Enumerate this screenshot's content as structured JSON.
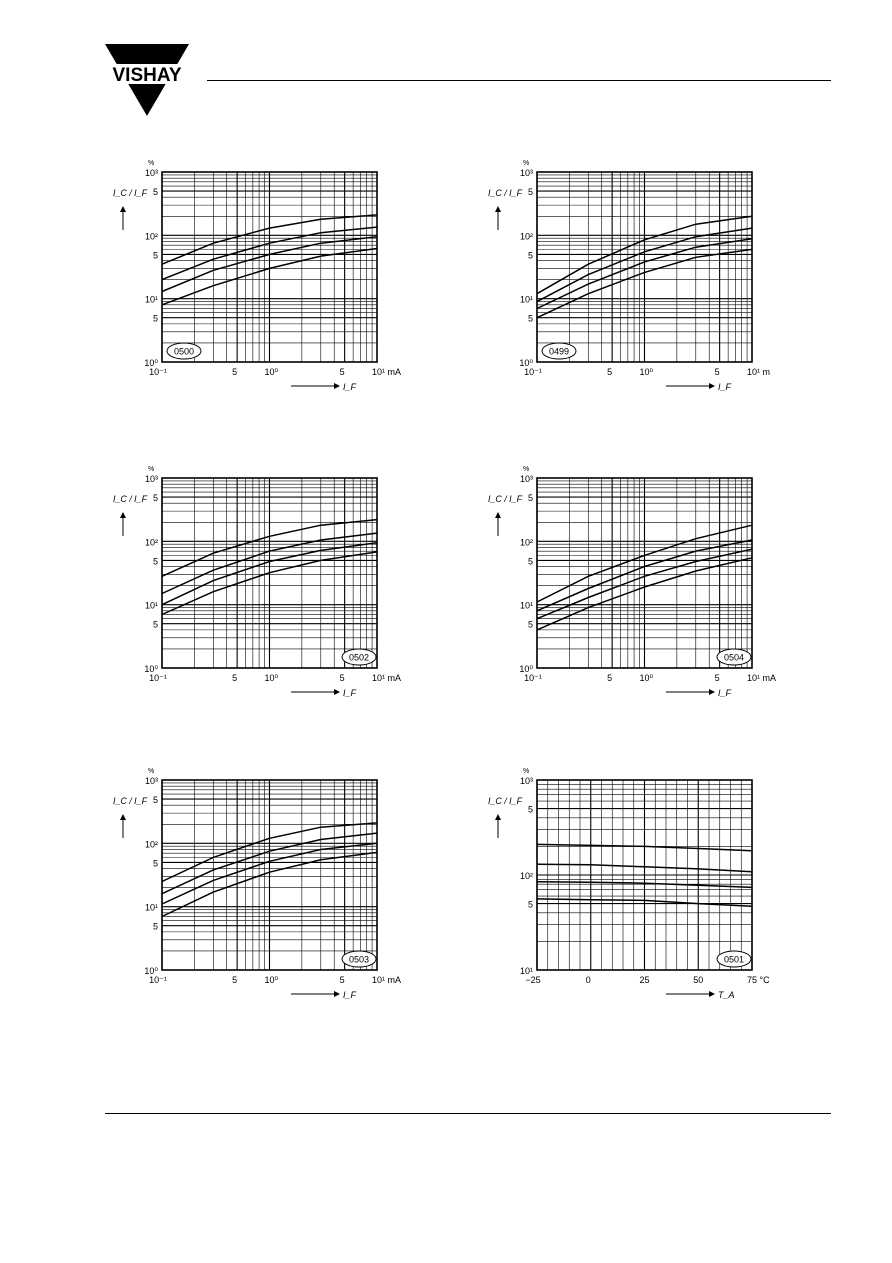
{
  "header": {
    "brand": "VISHAY"
  },
  "chart_data": [
    {
      "type": "line",
      "x_scale": "log",
      "y_scale": "log",
      "xlim": [
        0.1,
        10
      ],
      "ylim": [
        1,
        1000
      ],
      "x_ticks": [
        "10⁻¹",
        "5",
        "10⁰",
        "5",
        "10¹ mA"
      ],
      "y_ticks": [
        "10⁰",
        "5",
        "10¹",
        "5",
        "10²",
        "5",
        "10³"
      ],
      "y_unit": "%",
      "ylabel": "I_C / I_F",
      "xlabel": "I_F",
      "figure_id": "0500",
      "id_position": "bottom-left",
      "series": [
        {
          "x": [
            0.1,
            0.3,
            1,
            3,
            10
          ],
          "y": [
            35,
            75,
            130,
            180,
            210
          ]
        },
        {
          "x": [
            0.1,
            0.3,
            1,
            3,
            10
          ],
          "y": [
            20,
            42,
            75,
            110,
            135
          ]
        },
        {
          "x": [
            0.1,
            0.3,
            1,
            3,
            10
          ],
          "y": [
            13,
            28,
            50,
            75,
            95
          ]
        },
        {
          "x": [
            0.1,
            0.3,
            1,
            3,
            10
          ],
          "y": [
            8,
            16,
            30,
            47,
            62
          ]
        }
      ]
    },
    {
      "type": "line",
      "x_scale": "log",
      "y_scale": "log",
      "xlim": [
        0.1,
        10
      ],
      "ylim": [
        1,
        1000
      ],
      "x_ticks": [
        "10⁻¹",
        "5",
        "10⁰",
        "5",
        "10¹ m"
      ],
      "y_ticks": [
        "10⁰",
        "5",
        "10¹",
        "5",
        "10²",
        "5",
        "10³"
      ],
      "y_unit": "%",
      "ylabel": "I_C / I_F",
      "xlabel": "I_F",
      "figure_id": "0499",
      "id_position": "bottom-left",
      "series": [
        {
          "x": [
            0.1,
            0.3,
            1,
            3,
            10
          ],
          "y": [
            12,
            35,
            85,
            150,
            200
          ]
        },
        {
          "x": [
            0.1,
            0.3,
            1,
            3,
            10
          ],
          "y": [
            9,
            24,
            55,
            95,
            130
          ]
        },
        {
          "x": [
            0.1,
            0.3,
            1,
            3,
            10
          ],
          "y": [
            7,
            17,
            38,
            65,
            88
          ]
        },
        {
          "x": [
            0.1,
            0.3,
            1,
            3,
            10
          ],
          "y": [
            5,
            12,
            26,
            45,
            60
          ]
        }
      ]
    },
    {
      "type": "line",
      "x_scale": "log",
      "y_scale": "log",
      "xlim": [
        0.1,
        10
      ],
      "ylim": [
        1,
        1000
      ],
      "x_ticks": [
        "10⁻¹",
        "5",
        "10⁰",
        "5",
        "10¹ mA"
      ],
      "y_ticks": [
        "10⁰",
        "5",
        "10¹",
        "5",
        "10²",
        "5",
        "10³"
      ],
      "y_unit": "%",
      "ylabel": "I_C / I_F",
      "xlabel": "I_F",
      "figure_id": "0502",
      "id_position": "bottom-right",
      "series": [
        {
          "x": [
            0.1,
            0.3,
            1,
            3,
            10
          ],
          "y": [
            28,
            65,
            120,
            180,
            220
          ]
        },
        {
          "x": [
            0.1,
            0.3,
            1,
            3,
            10
          ],
          "y": [
            15,
            35,
            70,
            105,
            135
          ]
        },
        {
          "x": [
            0.1,
            0.3,
            1,
            3,
            10
          ],
          "y": [
            10,
            24,
            48,
            72,
            95
          ]
        },
        {
          "x": [
            0.1,
            0.3,
            1,
            3,
            10
          ],
          "y": [
            7,
            16,
            32,
            50,
            68
          ]
        }
      ]
    },
    {
      "type": "line",
      "x_scale": "log",
      "y_scale": "log",
      "xlim": [
        0.1,
        10
      ],
      "ylim": [
        1,
        1000
      ],
      "x_ticks": [
        "10⁻¹",
        "5",
        "10⁰",
        "5",
        "10¹ mA"
      ],
      "y_ticks": [
        "10⁰",
        "5",
        "10¹",
        "5",
        "10²",
        "5",
        "10³"
      ],
      "y_unit": "%",
      "ylabel": "I_C / I_F",
      "xlabel": "I_F",
      "figure_id": "0504",
      "id_position": "bottom-right",
      "series": [
        {
          "x": [
            0.1,
            0.3,
            1,
            3,
            10
          ],
          "y": [
            11,
            28,
            60,
            110,
            180
          ]
        },
        {
          "x": [
            0.1,
            0.3,
            1,
            3,
            10
          ],
          "y": [
            8,
            18,
            40,
            70,
            105
          ]
        },
        {
          "x": [
            0.1,
            0.3,
            1,
            3,
            10
          ],
          "y": [
            6,
            13,
            28,
            48,
            75
          ]
        },
        {
          "x": [
            0.1,
            0.3,
            1,
            3,
            10
          ],
          "y": [
            4,
            9,
            19,
            34,
            55
          ]
        }
      ]
    },
    {
      "type": "line",
      "x_scale": "log",
      "y_scale": "log",
      "xlim": [
        0.1,
        10
      ],
      "ylim": [
        1,
        1000
      ],
      "x_ticks": [
        "10⁻¹",
        "5",
        "10⁰",
        "5",
        "10¹ mA"
      ],
      "y_ticks": [
        "10⁰",
        "5",
        "10¹",
        "5",
        "10²",
        "5",
        "10³"
      ],
      "y_unit": "%",
      "ylabel": "I_C / I_F",
      "xlabel": "I_F",
      "figure_id": "0503",
      "id_position": "bottom-right",
      "series": [
        {
          "x": [
            0.1,
            0.3,
            1,
            3,
            10
          ],
          "y": [
            25,
            60,
            120,
            180,
            210
          ]
        },
        {
          "x": [
            0.1,
            0.3,
            1,
            3,
            10
          ],
          "y": [
            16,
            38,
            75,
            115,
            145
          ]
        },
        {
          "x": [
            0.1,
            0.3,
            1,
            3,
            10
          ],
          "y": [
            11,
            26,
            52,
            80,
            100
          ]
        },
        {
          "x": [
            0.1,
            0.3,
            1,
            3,
            10
          ],
          "y": [
            7,
            17,
            35,
            55,
            72
          ]
        }
      ]
    },
    {
      "type": "line",
      "x_scale": "linear",
      "y_scale": "log",
      "xlim": [
        -25,
        75
      ],
      "ylim": [
        10,
        1000
      ],
      "x_ticks": [
        "−25",
        "0",
        "25",
        "50",
        "75 °C"
      ],
      "y_ticks": [
        "10¹",
        "5",
        "10²",
        "5",
        "10³"
      ],
      "y_unit": "%",
      "ylabel": "I_C / I_F",
      "xlabel": "T_A",
      "figure_id": "0501",
      "id_position": "bottom-right",
      "series": [
        {
          "x": [
            -25,
            0,
            25,
            50,
            75
          ],
          "y": [
            210,
            205,
            200,
            190,
            180
          ]
        },
        {
          "x": [
            -25,
            0,
            25,
            50,
            75
          ],
          "y": [
            130,
            128,
            122,
            116,
            108
          ]
        },
        {
          "x": [
            -25,
            0,
            25,
            50,
            75
          ],
          "y": [
            85,
            84,
            82,
            78,
            74
          ]
        },
        {
          "x": [
            -25,
            0,
            25,
            50,
            75
          ],
          "y": [
            56,
            55,
            54,
            50,
            47
          ]
        }
      ]
    }
  ]
}
